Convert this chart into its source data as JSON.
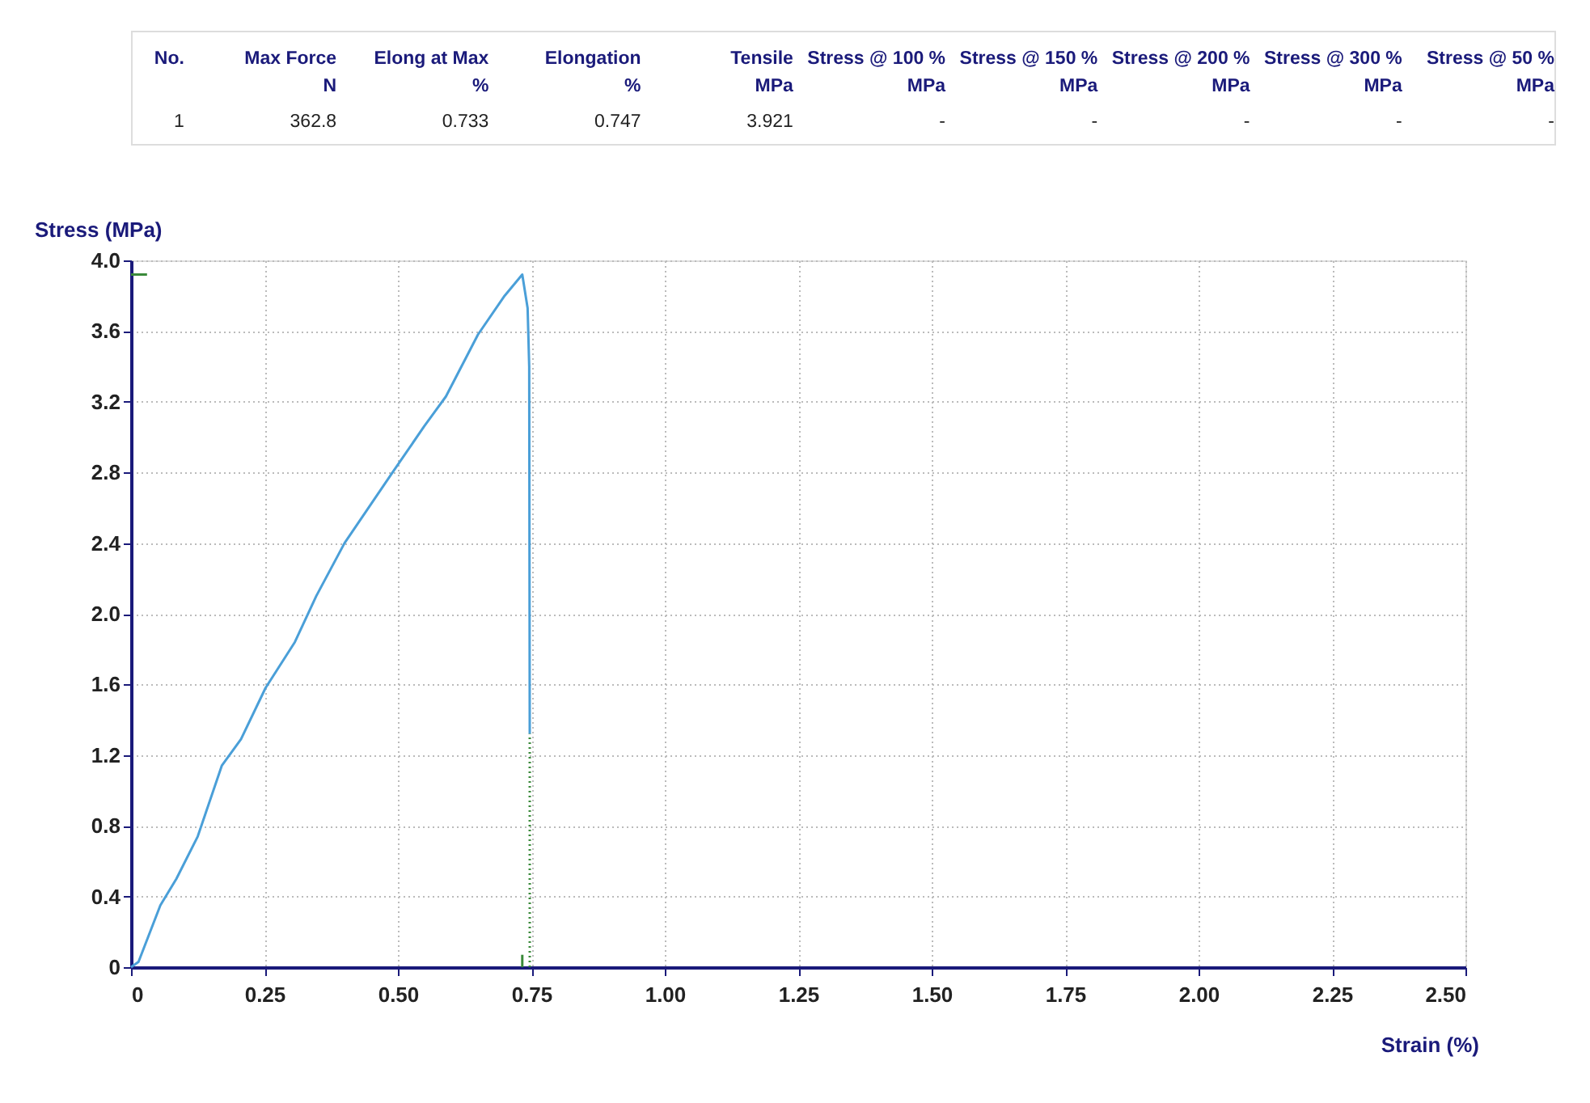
{
  "chart_data": {
    "type": "line",
    "annotations": [
      "No.",
      "Max Force\nN",
      "Elong at Max\n%",
      "Elongation\n%",
      "Tensile\nMPa",
      "Stress @ 100 %\nMPa",
      "Stress @ 150 %\nMPa",
      "Stress @ 200 %\nMPa",
      "Stress @ 300 %\nMPa",
      "Stress @ 50 %\nMPa",
      "1",
      "362.8",
      "0.733",
      "0.747",
      "3.921",
      "-",
      "-",
      "-",
      "-",
      "-"
    ],
    "xlabel": "Strain (%)",
    "ylabel": "Stress (MPa)",
    "series": [
      {
        "color": "#4a9fd8",
        "x": [
          0,
          0.014,
          0.055,
          0.085,
          0.125,
          0.17,
          0.206,
          0.252,
          0.307,
          0.347,
          0.4,
          0.49,
          0.549,
          0.59,
          0.65,
          0.7,
          0.733,
          0.743,
          0.746,
          0.747
        ],
        "values": [
          0,
          0.03,
          0.35,
          0.5,
          0.74,
          1.14,
          1.29,
          1.58,
          1.84,
          2.1,
          2.4,
          2.8,
          3.06,
          3.23,
          3.58,
          3.8,
          3.92,
          3.73,
          3.4,
          1.32
        ]
      },
      {
        "color": "#3a8a3a",
        "x": [
          0,
          0.03
        ],
        "values": [
          3.92,
          3.92
        ]
      },
      {
        "color": "#3a8a3a",
        "x": [
          0.733,
          0.733
        ],
        "values": [
          0,
          0.07
        ]
      },
      {
        "color": "#3a8a3a",
        "x": [
          0.747,
          0.747
        ],
        "values": [
          0,
          1.32
        ],
        "line_style": "dotted"
      }
    ],
    "xlim": [
      0,
      2.5
    ],
    "xticks": [
      0,
      0.25,
      {
        "value": 0.5,
        "label": "0.50"
      },
      0.75,
      {
        "value": 1,
        "label": "1.00"
      },
      1.25,
      {
        "value": 1.5,
        "label": "1.50"
      },
      1.75,
      {
        "value": 2,
        "label": "2.00"
      },
      2.25,
      {
        "value": 2.5,
        "label": "2.50"
      }
    ],
    "ylim": [
      0,
      4
    ],
    "yticks": [
      0,
      0.4,
      0.8,
      1.2,
      1.6,
      {
        "value": 2,
        "label": "2.0"
      },
      2.4,
      2.8,
      3.2,
      3.6,
      {
        "value": 4,
        "label": "4.0"
      }
    ],
    "grid": true,
    "marker": "none",
    "line_style": "solid"
  }
}
